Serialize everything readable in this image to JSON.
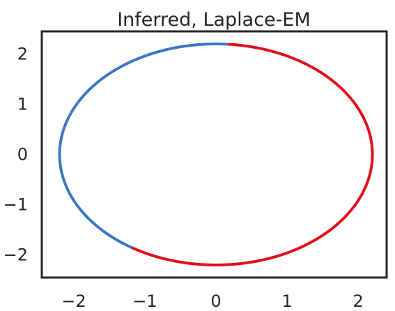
{
  "chart_data": {
    "type": "line",
    "title": "Inferred, Laplace-EM",
    "xlabel": "",
    "ylabel": "",
    "xlim": [
      -2.45,
      2.4
    ],
    "ylim": [
      -2.45,
      2.45
    ],
    "x_ticks": [
      -2,
      -1,
      0,
      1,
      2
    ],
    "y_ticks": [
      2,
      1,
      0,
      -1,
      -2
    ],
    "x_tick_labels": [
      "−2",
      "−1",
      "0",
      "1",
      "2"
    ],
    "y_tick_labels": [
      "2",
      "1",
      "0",
      "−1",
      "−2"
    ],
    "grid": false,
    "legend": "none",
    "trajectory": {
      "shape": "ellipse",
      "center": [
        0.0,
        0.0
      ],
      "radius_x": 2.2,
      "radius_y": 2.2
    },
    "segments": [
      {
        "state": "blue",
        "color": "#3a78c2",
        "angle_start_deg": 85,
        "angle_end_deg": 238
      },
      {
        "state": "red",
        "color": "#e0101b",
        "angle_start_deg": 238,
        "angle_end_deg": 445
      }
    ]
  }
}
